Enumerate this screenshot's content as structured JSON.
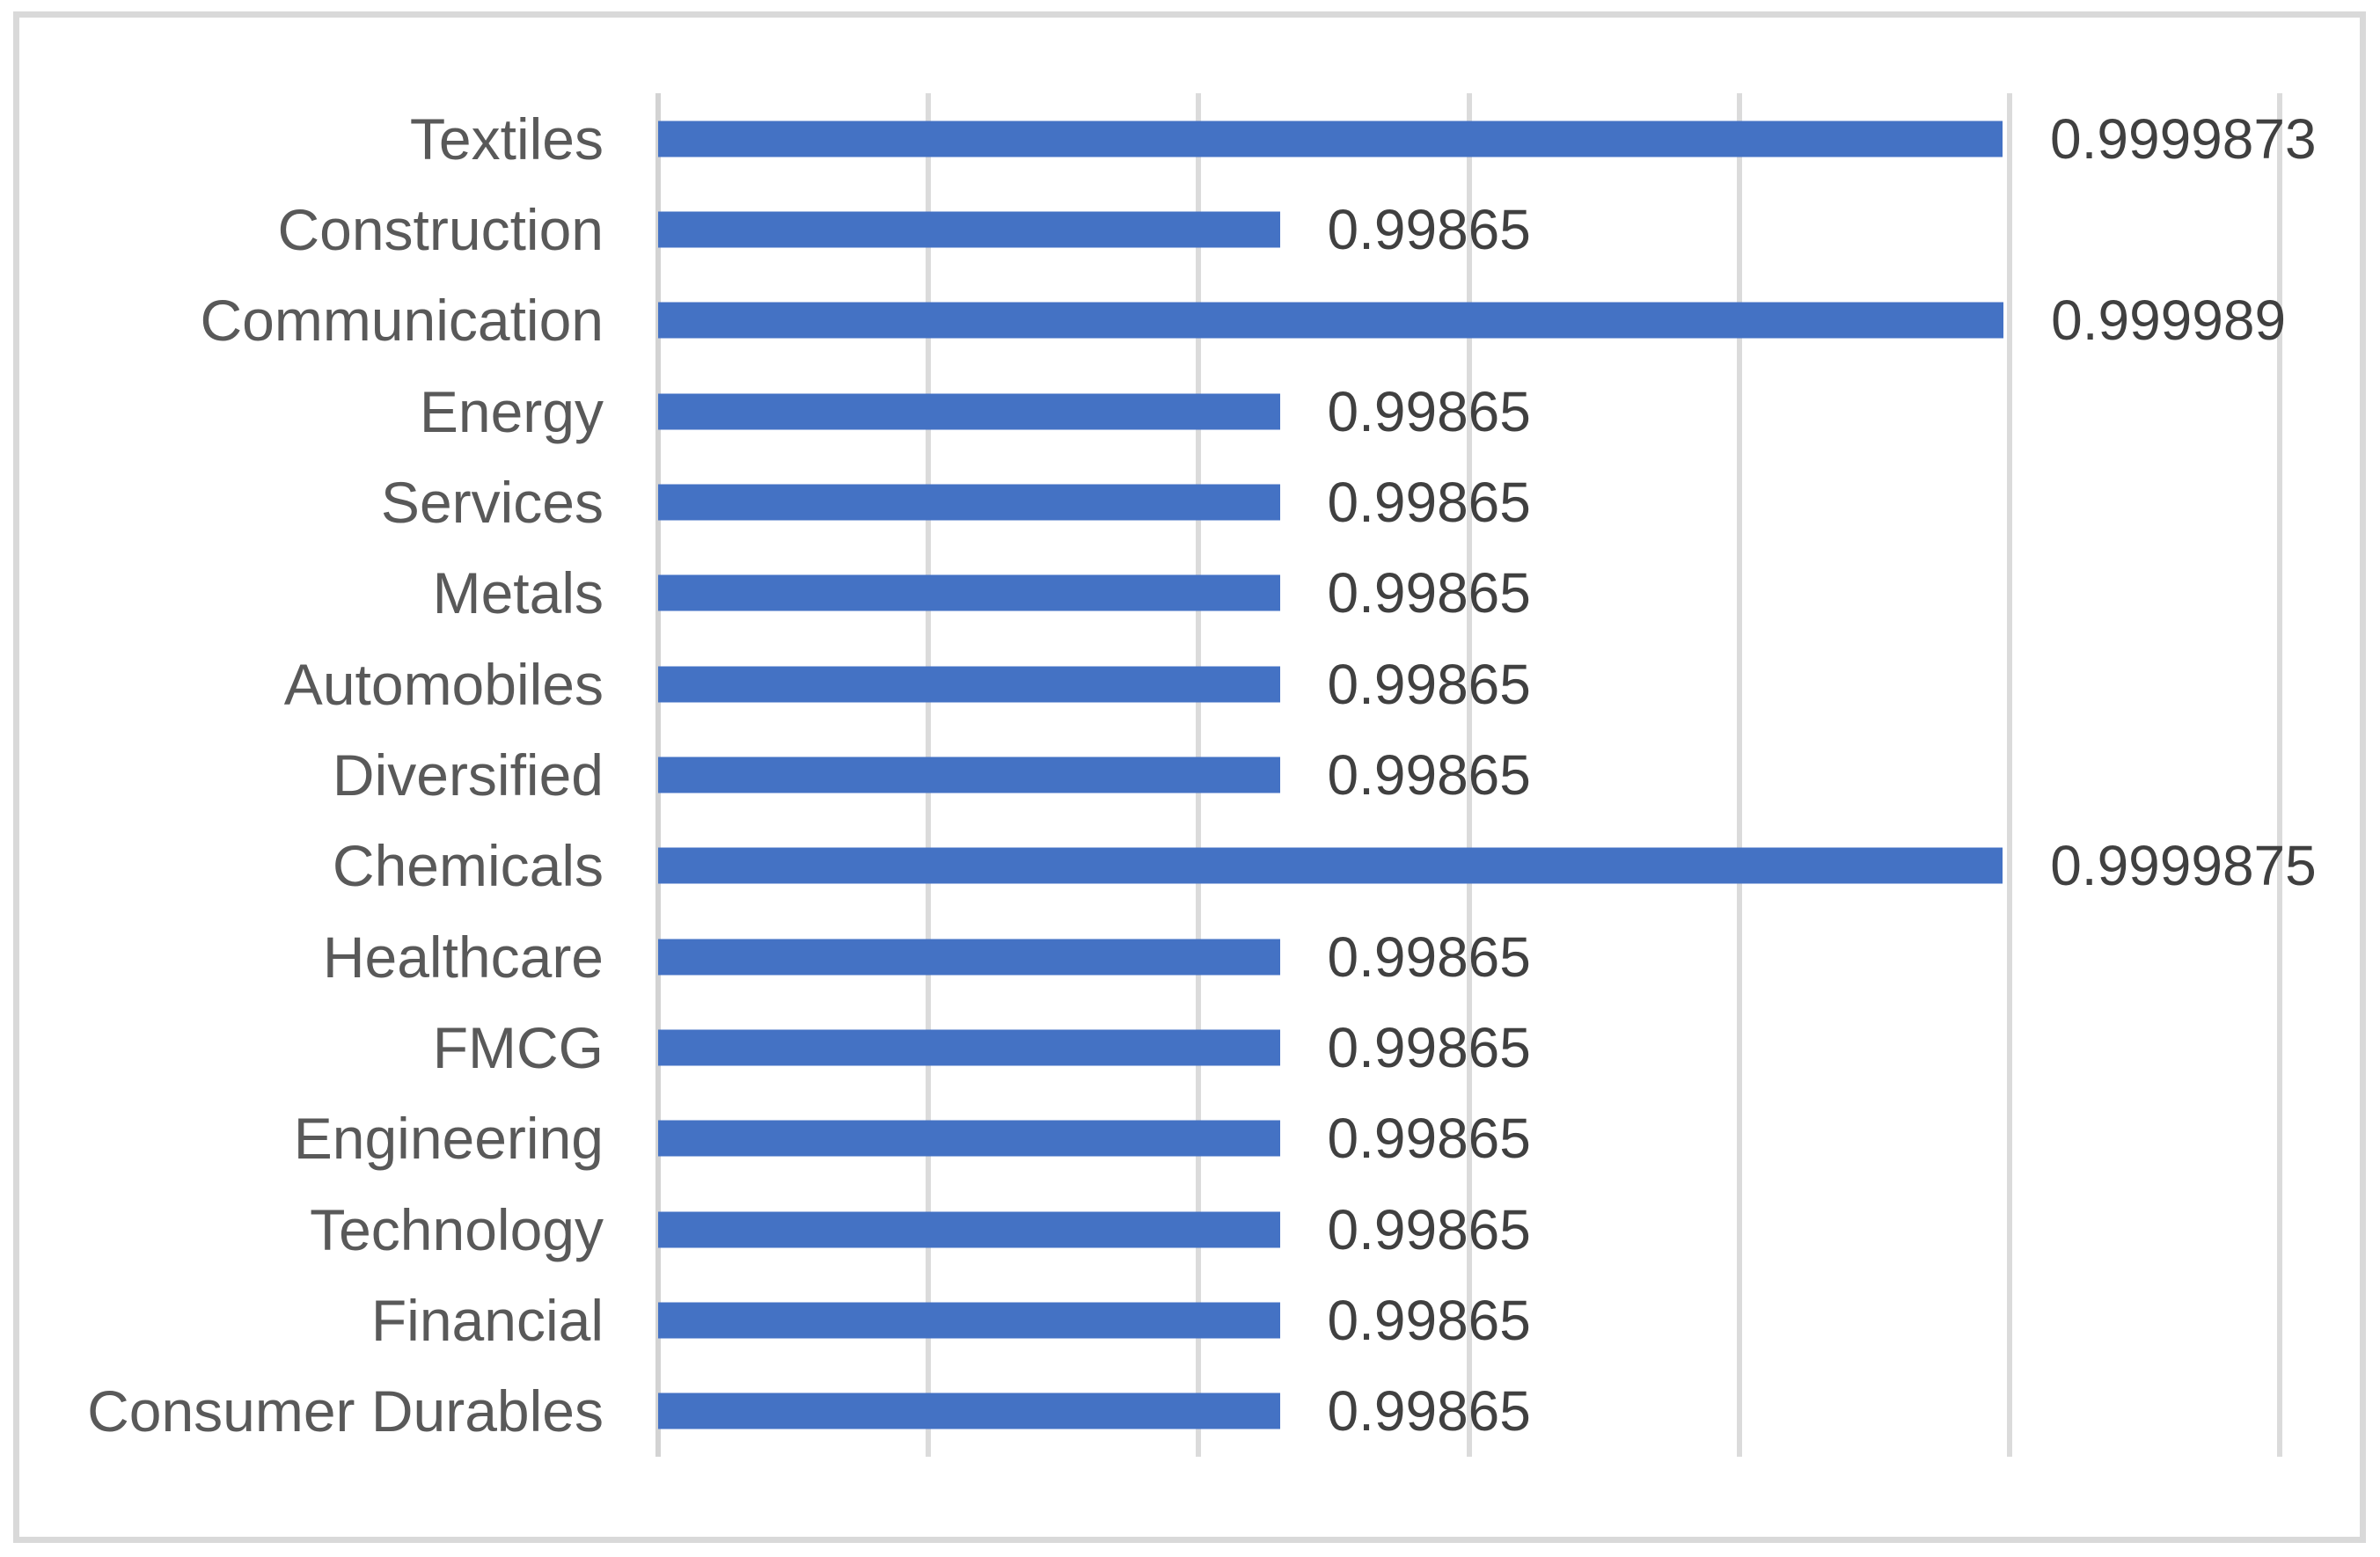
{
  "chart_data": {
    "type": "bar",
    "orientation": "horizontal",
    "title": "",
    "xlabel": "",
    "ylabel": "",
    "categories": [
      "Textiles",
      "Construction",
      "Communication",
      "Energy",
      "Services",
      "Metals",
      "Automobiles",
      "Diversified",
      "Chemicals",
      "Healthcare",
      "FMCG",
      "Engineering",
      "Technology",
      "Financial",
      "Consumer Durables"
    ],
    "values": [
      0.9999873,
      0.99865,
      0.999989,
      0.99865,
      0.99865,
      0.99865,
      0.99865,
      0.99865,
      0.9999875,
      0.99865,
      0.99865,
      0.99865,
      0.99865,
      0.99865,
      0.99865
    ],
    "value_labels": [
      "0.9999873",
      "0.99865",
      "0.999989",
      "0.99865",
      "0.99865",
      "0.99865",
      "0.99865",
      "0.99865",
      "0.9999875",
      "0.99865",
      "0.99865",
      "0.99865",
      "0.99865",
      "0.99865",
      "0.99865"
    ],
    "xlim": [
      0.9975,
      1.0005
    ],
    "gridline_interval": 0.0005,
    "grid": true,
    "legend": false,
    "axis_tick_labels_visible": false,
    "data_labels_visible": true,
    "colors": {
      "bar": "#4472C4",
      "gridline": "#DBDBDB",
      "axis_line": "#D3D3D3",
      "category_label": "#595959",
      "value_label": "#404040",
      "chart_border": "#D9D9D9",
      "background": "#FFFFFF"
    }
  }
}
